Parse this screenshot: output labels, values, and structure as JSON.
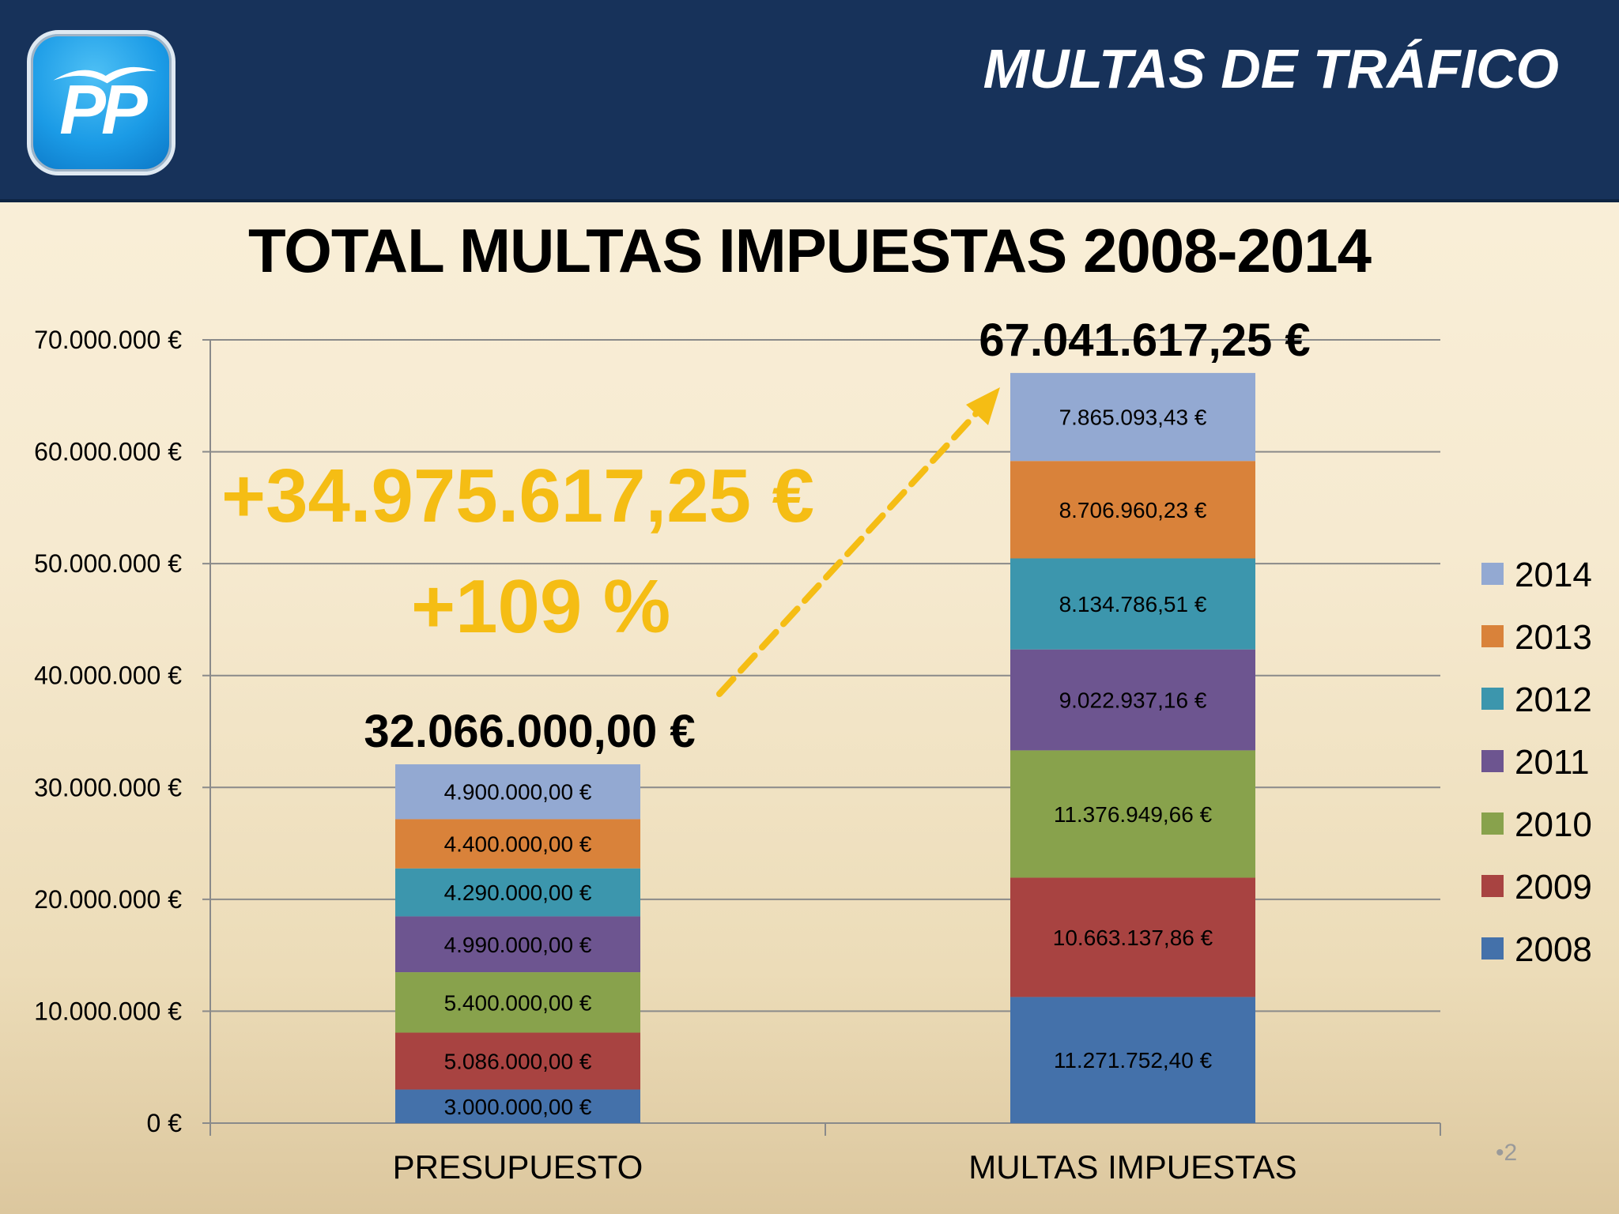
{
  "header": {
    "title": "MULTAS DE TRÁFICO",
    "logo_text": "PP"
  },
  "annotations": {
    "difference": "+34.975.617,25 €",
    "percent": "+109 %"
  },
  "page_number": "•2",
  "colors": {
    "2008": "#4471aa",
    "2009": "#a84341",
    "2010": "#88a24c",
    "2011": "#6d5590",
    "2012": "#3c96ad",
    "2013": "#d9823a",
    "2014": "#93a9d2",
    "header_bg": "#17325a",
    "annotation": "#f5bd14"
  },
  "chart_data": {
    "type": "bar",
    "stacked": true,
    "title": "TOTAL MULTAS IMPUESTAS 2008-2014",
    "xlabel": "",
    "ylabel": "",
    "ylim": [
      0,
      70000000
    ],
    "yticks": [
      {
        "value": 0,
        "label": "0 €"
      },
      {
        "value": 10000000,
        "label": "10.000.000 €"
      },
      {
        "value": 20000000,
        "label": "20.000.000 €"
      },
      {
        "value": 30000000,
        "label": "30.000.000 €"
      },
      {
        "value": 40000000,
        "label": "40.000.000 €"
      },
      {
        "value": 50000000,
        "label": "50.000.000 €"
      },
      {
        "value": 60000000,
        "label": "60.000.000 €"
      },
      {
        "value": 70000000,
        "label": "70.000.000 €"
      }
    ],
    "grid": true,
    "legend_position": "right",
    "categories": [
      "PRESUPUESTO",
      "MULTAS IMPUESTAS"
    ],
    "totals": [
      {
        "value": 32066000.0,
        "label": "32.066.000,00 €"
      },
      {
        "value": 67041617.25,
        "label": "67.041.617,25 €"
      }
    ],
    "series": [
      {
        "name": "2008",
        "values": [
          3000000.0,
          11271752.4
        ],
        "labels": [
          "3.000.000,00 €",
          "11.271.752,40 €"
        ]
      },
      {
        "name": "2009",
        "values": [
          5086000.0,
          10663137.86
        ],
        "labels": [
          "5.086.000,00 €",
          "10.663.137,86 €"
        ]
      },
      {
        "name": "2010",
        "values": [
          5400000.0,
          11376949.66
        ],
        "labels": [
          "5.400.000,00 €",
          "11.376.949,66 €"
        ]
      },
      {
        "name": "2011",
        "values": [
          4990000.0,
          9022937.16
        ],
        "labels": [
          "4.990.000,00 €",
          "9.022.937,16 €"
        ]
      },
      {
        "name": "2012",
        "values": [
          4290000.0,
          8134786.51
        ],
        "labels": [
          "4.290.000,00 €",
          "8.134.786,51 €"
        ]
      },
      {
        "name": "2013",
        "values": [
          4400000.0,
          8706960.23
        ],
        "labels": [
          "4.400.000,00 €",
          "8.706.960,23 €"
        ]
      },
      {
        "name": "2014",
        "values": [
          4900000.0,
          7865093.43
        ],
        "labels": [
          "4.900.000,00 €",
          "7.865.093,43 €"
        ]
      }
    ]
  }
}
